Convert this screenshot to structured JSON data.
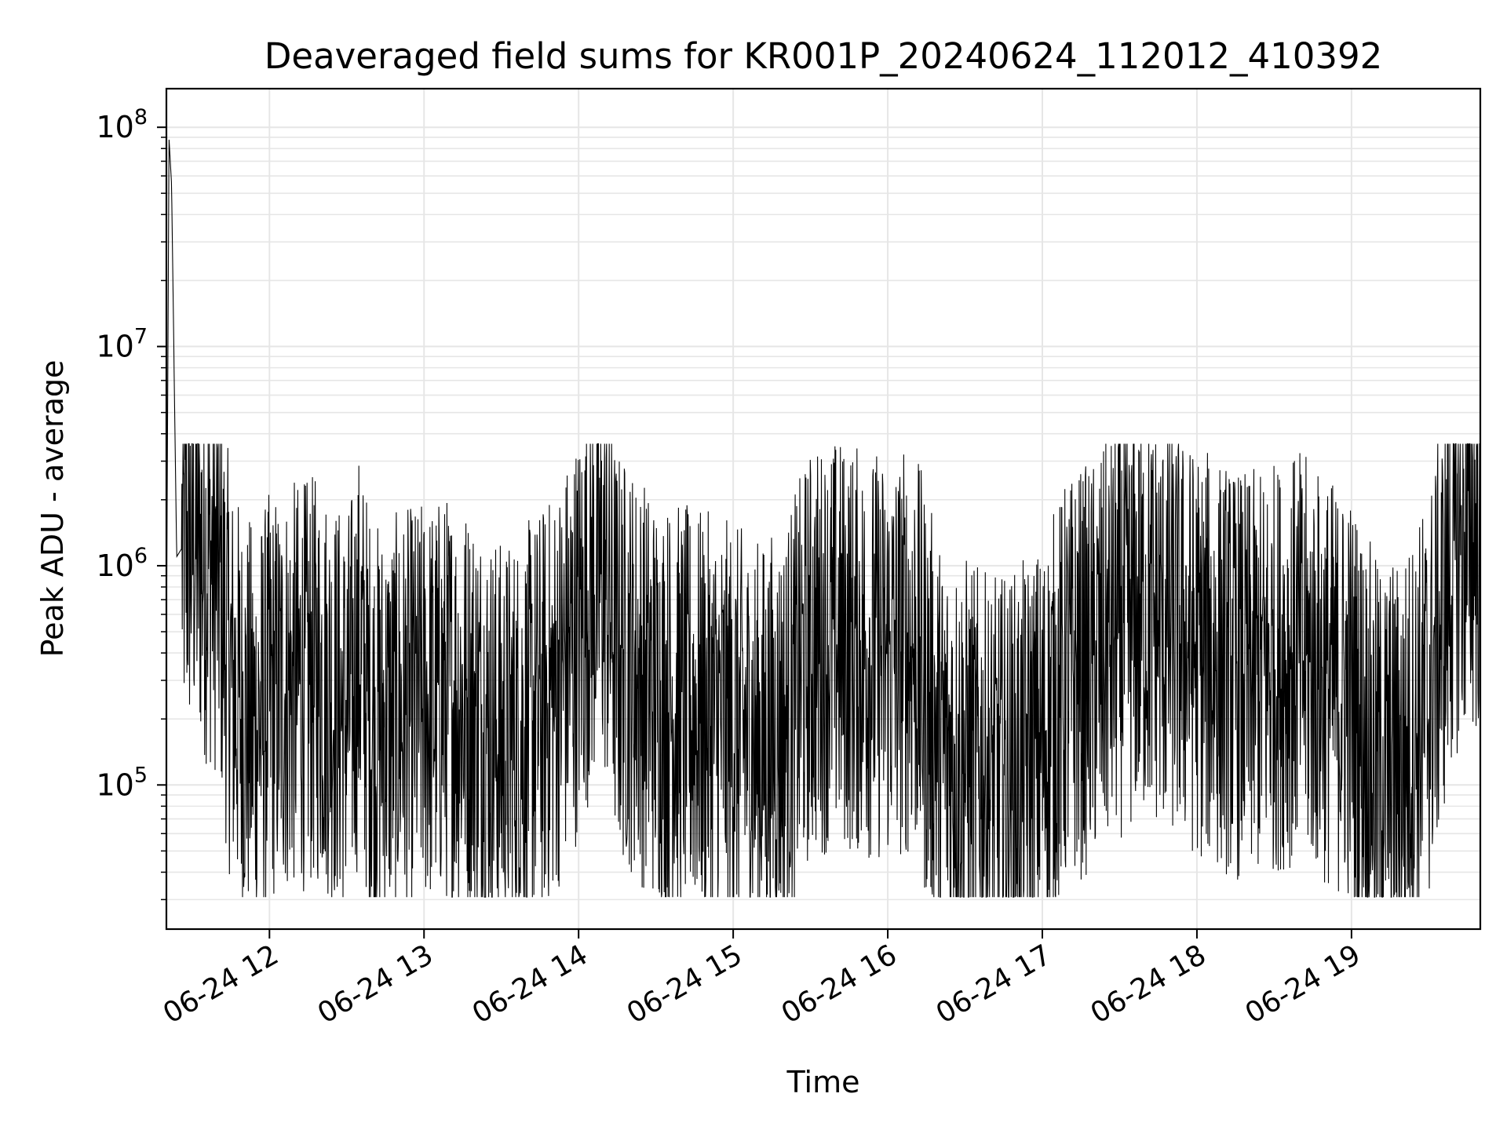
{
  "chart_data": {
    "type": "line",
    "title": "Deaveraged field sums for KR001P_20240624_112012_410392",
    "xlabel": "Time",
    "ylabel": "Peak ADU - average",
    "yscale": "log",
    "ylim": [
      22000,
      150000000
    ],
    "xlim": [
      "06-24 11:20",
      "06-24 19:50"
    ],
    "grid": true,
    "line_color": "#000000",
    "grid_color": "#e6e6e6",
    "x_ticks": [
      {
        "time": "06-24 12:00",
        "label": "06-24 12"
      },
      {
        "time": "06-24 13:00",
        "label": "06-24 13"
      },
      {
        "time": "06-24 14:00",
        "label": "06-24 14"
      },
      {
        "time": "06-24 15:00",
        "label": "06-24 15"
      },
      {
        "time": "06-24 16:00",
        "label": "06-24 16"
      },
      {
        "time": "06-24 17:00",
        "label": "06-24 17"
      },
      {
        "time": "06-24 18:00",
        "label": "06-24 18"
      },
      {
        "time": "06-24 19:00",
        "label": "06-24 19"
      }
    ],
    "y_ticks": [
      {
        "value": 100000,
        "base": "10",
        "exp": "5"
      },
      {
        "value": 1000000,
        "base": "10",
        "exp": "6"
      },
      {
        "value": 10000000,
        "base": "10",
        "exp": "7"
      },
      {
        "value": 100000000,
        "base": "10",
        "exp": "8"
      }
    ],
    "series": [
      {
        "x": [
          "06-24 11:20",
          "06-24 11:21",
          "06-24 11:22",
          "06-24 11:24",
          "06-24 11:26",
          "06-24 11:30",
          "06-24 11:35",
          "06-24 11:40",
          "06-24 11:45",
          "06-24 11:50",
          "06-24 11:55",
          "06-24 12:00",
          "06-24 12:10",
          "06-24 12:20",
          "06-24 12:30",
          "06-24 12:35",
          "06-24 12:40",
          "06-24 12:50",
          "06-24 13:00",
          "06-24 13:10",
          "06-24 13:20",
          "06-24 13:30",
          "06-24 13:40",
          "06-24 13:50",
          "06-24 14:00",
          "06-24 14:05",
          "06-24 14:10",
          "06-24 14:15",
          "06-24 14:20",
          "06-24 14:30",
          "06-24 14:40",
          "06-24 14:50",
          "06-24 15:00",
          "06-24 15:10",
          "06-24 15:20",
          "06-24 15:30",
          "06-24 15:40",
          "06-24 15:50",
          "06-24 16:00",
          "06-24 16:10",
          "06-24 16:20",
          "06-24 16:30",
          "06-24 16:40",
          "06-24 16:50",
          "06-24 17:00",
          "06-24 17:10",
          "06-24 17:20",
          "06-24 17:30",
          "06-24 17:40",
          "06-24 17:50",
          "06-24 18:00",
          "06-24 18:10",
          "06-24 18:20",
          "06-24 18:30",
          "06-24 18:40",
          "06-24 18:50",
          "06-24 19:00",
          "06-24 19:10",
          "06-24 19:20",
          "06-24 19:30",
          "06-24 19:40",
          "06-24 19:50"
        ],
        "y": [
          400000,
          90000000,
          55000000,
          1100000,
          1200000,
          1300000,
          1100000,
          950000,
          300000,
          200000,
          180000,
          250000,
          280000,
          300000,
          200000,
          400000,
          180000,
          200000,
          230000,
          250000,
          220000,
          150000,
          180000,
          250000,
          500000,
          800000,
          900000,
          400000,
          350000,
          250000,
          220000,
          200000,
          180000,
          150000,
          180000,
          400000,
          450000,
          400000,
          380000,
          420000,
          150000,
          130000,
          100000,
          110000,
          150000,
          300000,
          350000,
          500000,
          600000,
          500000,
          400000,
          350000,
          300000,
          350000,
          380000,
          300000,
          250000,
          120000,
          130000,
          250000,
          1200000,
          1500000
        ]
      }
    ]
  }
}
